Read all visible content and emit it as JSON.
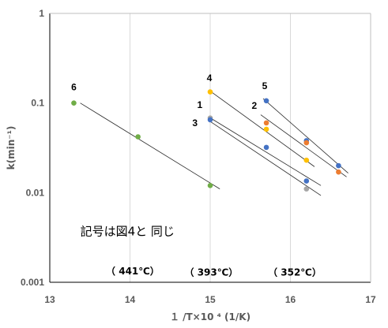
{
  "chart_data": {
    "type": "scatter",
    "xlabel": "１ /T×10 ⁴ (1/K)",
    "ylabel": "k(min⁻¹)",
    "x_range": [
      13,
      17
    ],
    "y_range": [
      0.001,
      1
    ],
    "y_scale": "log",
    "x_ticks": [
      "13",
      "14",
      "15",
      "16",
      "17"
    ],
    "y_ticks": [
      "0.001",
      "0.01",
      "0.1",
      "1"
    ],
    "grid": "vertical",
    "points": [
      {
        "x": 13.3,
        "y": 0.1,
        "color": "#70ad47"
      },
      {
        "x": 14.1,
        "y": 0.042,
        "color": "#70ad47"
      },
      {
        "x": 15.0,
        "y": 0.012,
        "color": "#70ad47"
      },
      {
        "x": 15.0,
        "y": 0.133,
        "color": "#ffc000"
      },
      {
        "x": 15.0,
        "y": 0.068,
        "color": "#a5a5a5"
      },
      {
        "x": 15.0,
        "y": 0.065,
        "color": "#4472c4"
      },
      {
        "x": 15.7,
        "y": 0.106,
        "color": "#4472c4"
      },
      {
        "x": 15.7,
        "y": 0.06,
        "color": "#ed7d31"
      },
      {
        "x": 15.7,
        "y": 0.051,
        "color": "#ffc000"
      },
      {
        "x": 15.7,
        "y": 0.032,
        "color": "#4472c4"
      },
      {
        "x": 16.2,
        "y": 0.038,
        "color": "#4472c4"
      },
      {
        "x": 16.2,
        "y": 0.036,
        "color": "#ed7d31"
      },
      {
        "x": 16.2,
        "y": 0.023,
        "color": "#ffc000"
      },
      {
        "x": 16.2,
        "y": 0.0135,
        "color": "#4472c4"
      },
      {
        "x": 16.2,
        "y": 0.011,
        "color": "#a5a5a5"
      },
      {
        "x": 16.6,
        "y": 0.02,
        "color": "#4472c4"
      },
      {
        "x": 16.6,
        "y": 0.017,
        "color": "#ed7d31"
      }
    ],
    "lines": [
      {
        "from": [
          13.38,
          0.1
        ],
        "to": [
          15.12,
          0.011
        ]
      },
      {
        "from": [
          14.98,
          0.14
        ],
        "to": [
          16.3,
          0.0195
        ]
      },
      {
        "from": [
          14.98,
          0.07
        ],
        "to": [
          16.38,
          0.012
        ]
      },
      {
        "from": [
          14.98,
          0.064
        ],
        "to": [
          16.38,
          0.0093
        ]
      },
      {
        "from": [
          15.66,
          0.112
        ],
        "to": [
          16.72,
          0.0165
        ]
      },
      {
        "from": [
          15.63,
          0.074
        ],
        "to": [
          16.7,
          0.015
        ]
      }
    ],
    "series_labels": [
      {
        "text": "6",
        "x": 13.3,
        "y": 0.15
      },
      {
        "text": "4",
        "x": 14.99,
        "y": 0.19
      },
      {
        "text": "5",
        "x": 15.68,
        "y": 0.155
      },
      {
        "text": "1",
        "x": 14.87,
        "y": 0.095
      },
      {
        "text": "2",
        "x": 15.55,
        "y": 0.093
      },
      {
        "text": "3",
        "x": 14.81,
        "y": 0.06
      }
    ],
    "annotations": [
      {
        "text": "記号は図4と 同じ",
        "x": 13.38,
        "y": 0.0037
      },
      {
        "text": "（ 441℃）",
        "x": 13.7,
        "y": 0.00135
      },
      {
        "text": "（ 393℃）",
        "x": 14.68,
        "y": 0.00132
      },
      {
        "text": "（ 352℃）",
        "x": 15.72,
        "y": 0.00132
      }
    ]
  }
}
